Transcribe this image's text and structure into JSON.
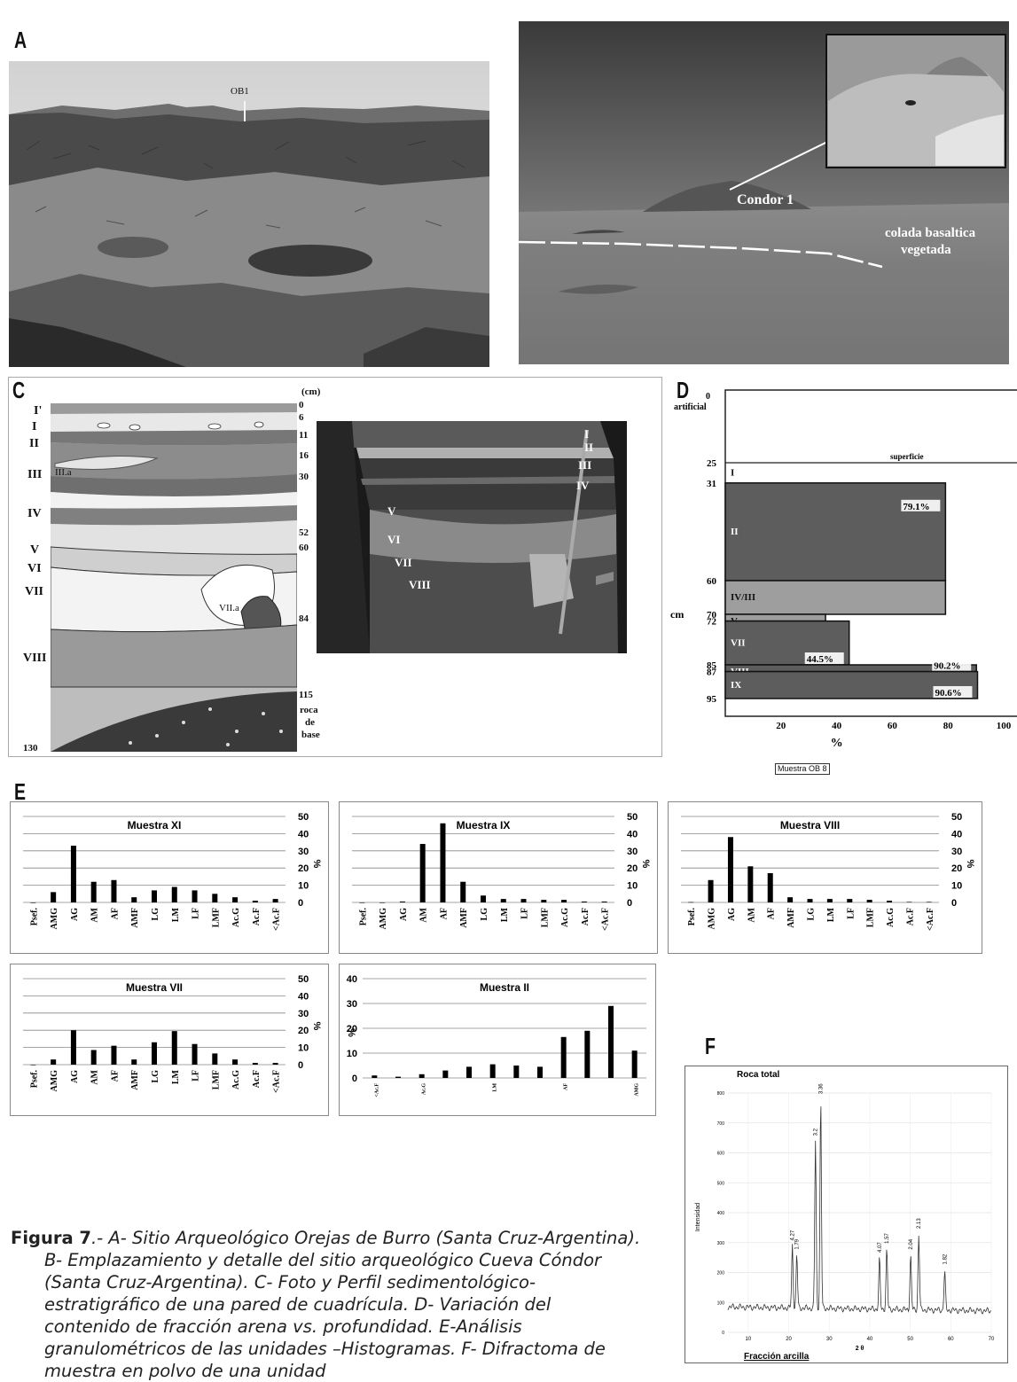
{
  "panels": {
    "A": {
      "letter": "A",
      "label_ob1": "OB1"
    },
    "B": {
      "letter": "B",
      "label_condor": "Condor 1",
      "label_colada_1": "colada basaltica",
      "label_colada_2": "vegetada"
    },
    "C": {
      "letter": "C",
      "unit_cm": "(cm)",
      "units": [
        "I'",
        "I",
        "II",
        "III",
        "IV",
        "V",
        "VI",
        "VII",
        "VIII"
      ],
      "depths": [
        "0",
        "6",
        "11",
        "16",
        "30",
        "52",
        "60",
        "84",
        "115",
        "130"
      ],
      "label_IIIa": "III.a",
      "label_VIIa": "VII.a",
      "roca": [
        "roca",
        "de",
        "base"
      ],
      "photo_labels": [
        "I",
        "II",
        "III",
        "IV",
        "V",
        "VI",
        "VII",
        "VIII"
      ]
    },
    "D": {
      "letter": "D",
      "y_top_label_1": "0",
      "y_top_label_2": "artificial",
      "superficie": "superficie",
      "y_ticks": [
        "25",
        "31",
        "60",
        "70",
        "72",
        "85",
        "87",
        "95"
      ],
      "y_unit": "cm",
      "x_ticks": [
        "20",
        "40",
        "60",
        "80",
        "100"
      ],
      "x_unit": "%",
      "muestra": "Muestra OB 8"
    },
    "E": {
      "letter": "E"
    },
    "F": {
      "letter": "F",
      "title": "Roca total",
      "ylabel": "Intensidad",
      "xlabel": "2 θ",
      "footer": "Fracción arcilla",
      "y_ticks": [
        "800",
        "700",
        "600",
        "500",
        "400",
        "300",
        "200",
        "100",
        "0"
      ],
      "x_ticks": [
        "10",
        "20",
        "30",
        "40",
        "50",
        "60",
        "70"
      ],
      "peak_labels": [
        "3.2",
        "3.36",
        "4.27",
        "1.79",
        "2.04",
        "2.13",
        "1.57",
        "4.07",
        "1.82"
      ]
    }
  },
  "chart_data": [
    {
      "type": "bar",
      "title": "",
      "categories": [
        "I",
        "II",
        "IV/III",
        "V",
        "VII",
        "VIII",
        "IX"
      ],
      "depth_from_cm": [
        25,
        31,
        60,
        70,
        72,
        85,
        87
      ],
      "depth_to_cm": [
        31,
        60,
        70,
        72,
        85,
        87,
        95
      ],
      "values": [
        0,
        79.1,
        79.1,
        36,
        44.5,
        90.2,
        90.6
      ],
      "value_labels": [
        "",
        "79.1%",
        "",
        "",
        "44.5%",
        "90.2%",
        "90.6%"
      ],
      "xlabel": "%",
      "ylabel": "cm",
      "xlim": [
        0,
        100
      ],
      "ylim": [
        0,
        95
      ]
    },
    {
      "type": "bar",
      "title": "Muestra XI",
      "categories": [
        "Psef.",
        "AMG",
        "AG",
        "AM",
        "AF",
        "AMF",
        "LG",
        "LM",
        "LF",
        "LMF",
        "Ac.G",
        "Ac.F",
        "<Ac.F"
      ],
      "values": [
        0,
        6,
        33,
        12,
        13,
        3,
        7,
        9,
        7,
        5,
        3,
        1,
        2
      ],
      "ylabel": "%",
      "ylim": [
        0,
        50
      ]
    },
    {
      "type": "bar",
      "title": "Muestra IX",
      "categories": [
        "Psef.",
        "AMG",
        "AG",
        "AM",
        "AF",
        "AMF",
        "LG",
        "LM",
        "LF",
        "LMF",
        "Ac.G",
        "Ac.F",
        "<Ac.F"
      ],
      "values": [
        0,
        0,
        0.5,
        34,
        46,
        12,
        4,
        2,
        2,
        1.5,
        1.5,
        0.5,
        0.5
      ],
      "ylabel": "%",
      "ylim": [
        0,
        50
      ]
    },
    {
      "type": "bar",
      "title": "Muestra VIII",
      "categories": [
        "Psef.",
        "AMG",
        "AG",
        "AM",
        "AF",
        "AMF",
        "LG",
        "LM",
        "LF",
        "LMF",
        "Ac.G",
        "Ac.F",
        "<Ac.F"
      ],
      "values": [
        0.2,
        13,
        38,
        21,
        17,
        3,
        2,
        2,
        2,
        1.5,
        1,
        0.3,
        0.3
      ],
      "ylabel": "%",
      "ylim": [
        0,
        50
      ]
    },
    {
      "type": "bar",
      "title": "Muestra VII",
      "categories": [
        "Psef.",
        "AMG",
        "AG",
        "AM",
        "AF",
        "AMF",
        "LG",
        "LM",
        "LF",
        "LMF",
        "Ac.G",
        "Ac.F",
        "<Ac.F"
      ],
      "values": [
        0,
        3,
        20,
        8.5,
        11,
        3,
        13,
        19.5,
        12,
        6.5,
        3,
        1,
        1
      ],
      "ylabel": "%",
      "ylim": [
        0,
        50
      ]
    },
    {
      "type": "bar",
      "title": "Muestra II",
      "categories": [
        "<Ac.F",
        "Ac.F",
        "Ac.G",
        "LMF",
        "LF",
        "LM",
        "LG",
        "AMF",
        "AF",
        "AM",
        "AG",
        "AMG"
      ],
      "tick_labels_visible": [
        "<Ac.F",
        "Ac.G",
        "LM",
        "AF",
        "AMG"
      ],
      "values": [
        1,
        0.5,
        1.5,
        3,
        4.5,
        5.5,
        5,
        4.5,
        16.5,
        19,
        29,
        11
      ],
      "ylabel": "%",
      "ylim": [
        0,
        40
      ]
    }
  ],
  "caption": {
    "fig_label": "Figura 7",
    "lines": [
      ".- A- Sitio Arqueológico Orejas de Burro (Santa Cruz-Argentina).",
      "B- Emplazamiento y detalle del sitio arqueológico Cueva Cóndor",
      "(Santa Cruz-Argentina). C- Foto y Perfil sedimentológico-",
      "estratigráfico de una pared de cuadrícula. D- Variación del",
      "contenido de fracción arena vs. profundidad. E-Análisis",
      "granulométricos de las unidades –Histogramas. F- Difractoma de",
      "muestra en polvo de una unidad"
    ]
  }
}
